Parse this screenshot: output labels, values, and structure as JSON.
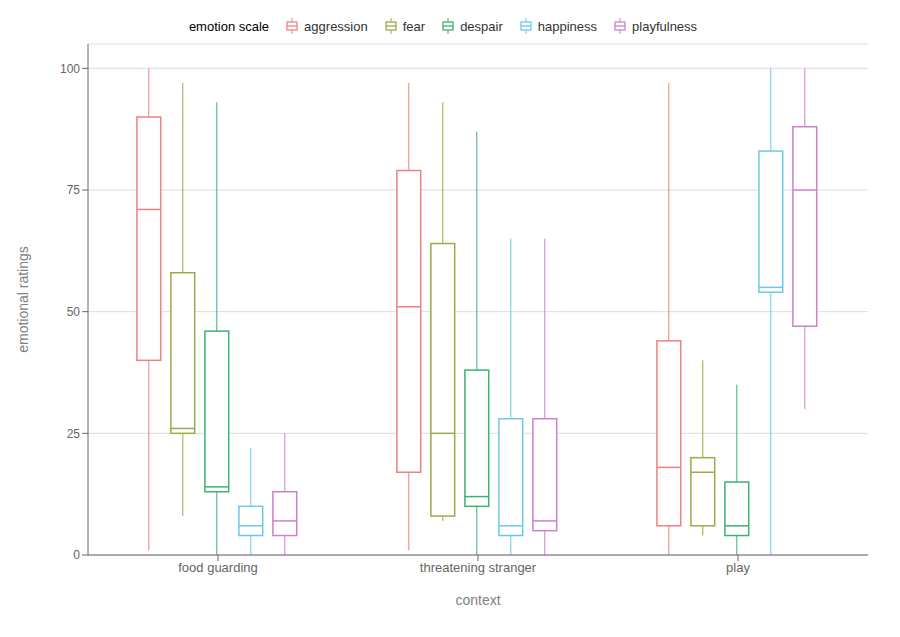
{
  "chart_data": {
    "type": "box",
    "xlabel": "context",
    "ylabel": "emotional ratings",
    "legend_title": "emotion scale",
    "legend": "top",
    "grid": true,
    "ylim": [
      0,
      105
    ],
    "yticks": [
      0,
      25,
      50,
      75,
      100
    ],
    "categories": [
      "food guarding",
      "threatening stranger",
      "play"
    ],
    "series": [
      {
        "name": "aggression",
        "color": "#F08080",
        "values": [
          {
            "whislo": 1,
            "q1": 40,
            "med": 71,
            "q3": 90,
            "whishi": 100
          },
          {
            "whislo": 1,
            "q1": 17,
            "med": 51,
            "q3": 79,
            "whishi": 97
          },
          {
            "whislo": 0,
            "q1": 6,
            "med": 18,
            "q3": 44,
            "whishi": 97
          }
        ]
      },
      {
        "name": "fear",
        "color": "#9DAB47",
        "values": [
          {
            "whislo": 8,
            "q1": 25,
            "med": 26,
            "q3": 58,
            "whishi": 97
          },
          {
            "whislo": 7,
            "q1": 8,
            "med": 25,
            "q3": 64,
            "whishi": 93
          },
          {
            "whislo": 4,
            "q1": 6,
            "med": 17,
            "q3": 20,
            "whishi": 40
          }
        ]
      },
      {
        "name": "despair",
        "color": "#3CB371",
        "values": [
          {
            "whislo": 0,
            "q1": 13,
            "med": 14,
            "q3": 46,
            "whishi": 93
          },
          {
            "whislo": 0,
            "q1": 10,
            "med": 12,
            "q3": 38,
            "whishi": 87
          },
          {
            "whislo": 0,
            "q1": 4,
            "med": 6,
            "q3": 15,
            "whishi": 35
          }
        ]
      },
      {
        "name": "happiness",
        "color": "#6DC8E8",
        "values": [
          {
            "whislo": 0,
            "q1": 4,
            "med": 6,
            "q3": 10,
            "whishi": 22
          },
          {
            "whislo": 0,
            "q1": 4,
            "med": 6,
            "q3": 28,
            "whishi": 65
          },
          {
            "whislo": 0,
            "q1": 54,
            "med": 55,
            "q3": 83,
            "whishi": 100
          }
        ]
      },
      {
        "name": "playfulness",
        "color": "#CC80CC",
        "values": [
          {
            "whislo": 0,
            "q1": 4,
            "med": 7,
            "q3": 13,
            "whishi": 25
          },
          {
            "whislo": 0,
            "q1": 5,
            "med": 7,
            "q3": 28,
            "whishi": 65
          },
          {
            "whislo": 30,
            "q1": 47,
            "med": 75,
            "q3": 88,
            "whishi": 100
          }
        ]
      }
    ]
  }
}
